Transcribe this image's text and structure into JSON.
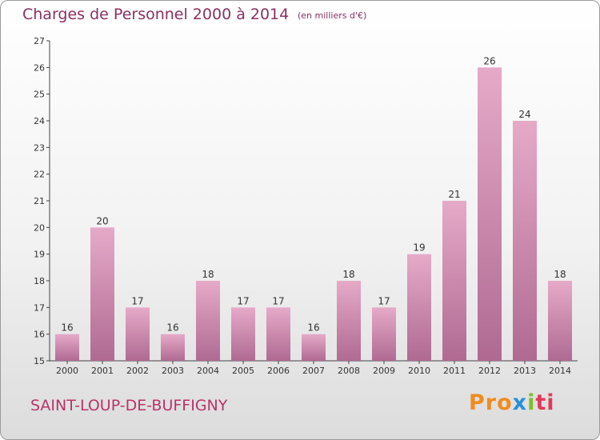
{
  "header": {
    "title": "Charges de Personnel 2000 à 2014",
    "unit": "(en milliers d'€)"
  },
  "footer": {
    "commune": "SAINT-LOUP-DE-BUFFIGNY",
    "logo_parts": [
      "Pro",
      "x",
      "i",
      "ti"
    ]
  },
  "colors": {
    "bar_top": "#e6aac8",
    "bar_bottom": "#b06a92",
    "title": "#8a3060",
    "commune": "#b8336a"
  },
  "chart_data": {
    "type": "bar",
    "title": "Charges de Personnel 2000 à 2014",
    "subtitle": "(en milliers d'€)",
    "categories": [
      "2000",
      "2001",
      "2002",
      "2003",
      "2004",
      "2005",
      "2006",
      "2007",
      "2008",
      "2009",
      "2010",
      "2011",
      "2012",
      "2013",
      "2014"
    ],
    "values": [
      16,
      20,
      17,
      16,
      18,
      17,
      17,
      16,
      18,
      17,
      19,
      21,
      26,
      24,
      18
    ],
    "ylim": [
      15,
      27
    ],
    "yticks": [
      15,
      16,
      17,
      18,
      19,
      20,
      21,
      22,
      23,
      24,
      25,
      26,
      27
    ],
    "grid": false,
    "legend": "none"
  }
}
